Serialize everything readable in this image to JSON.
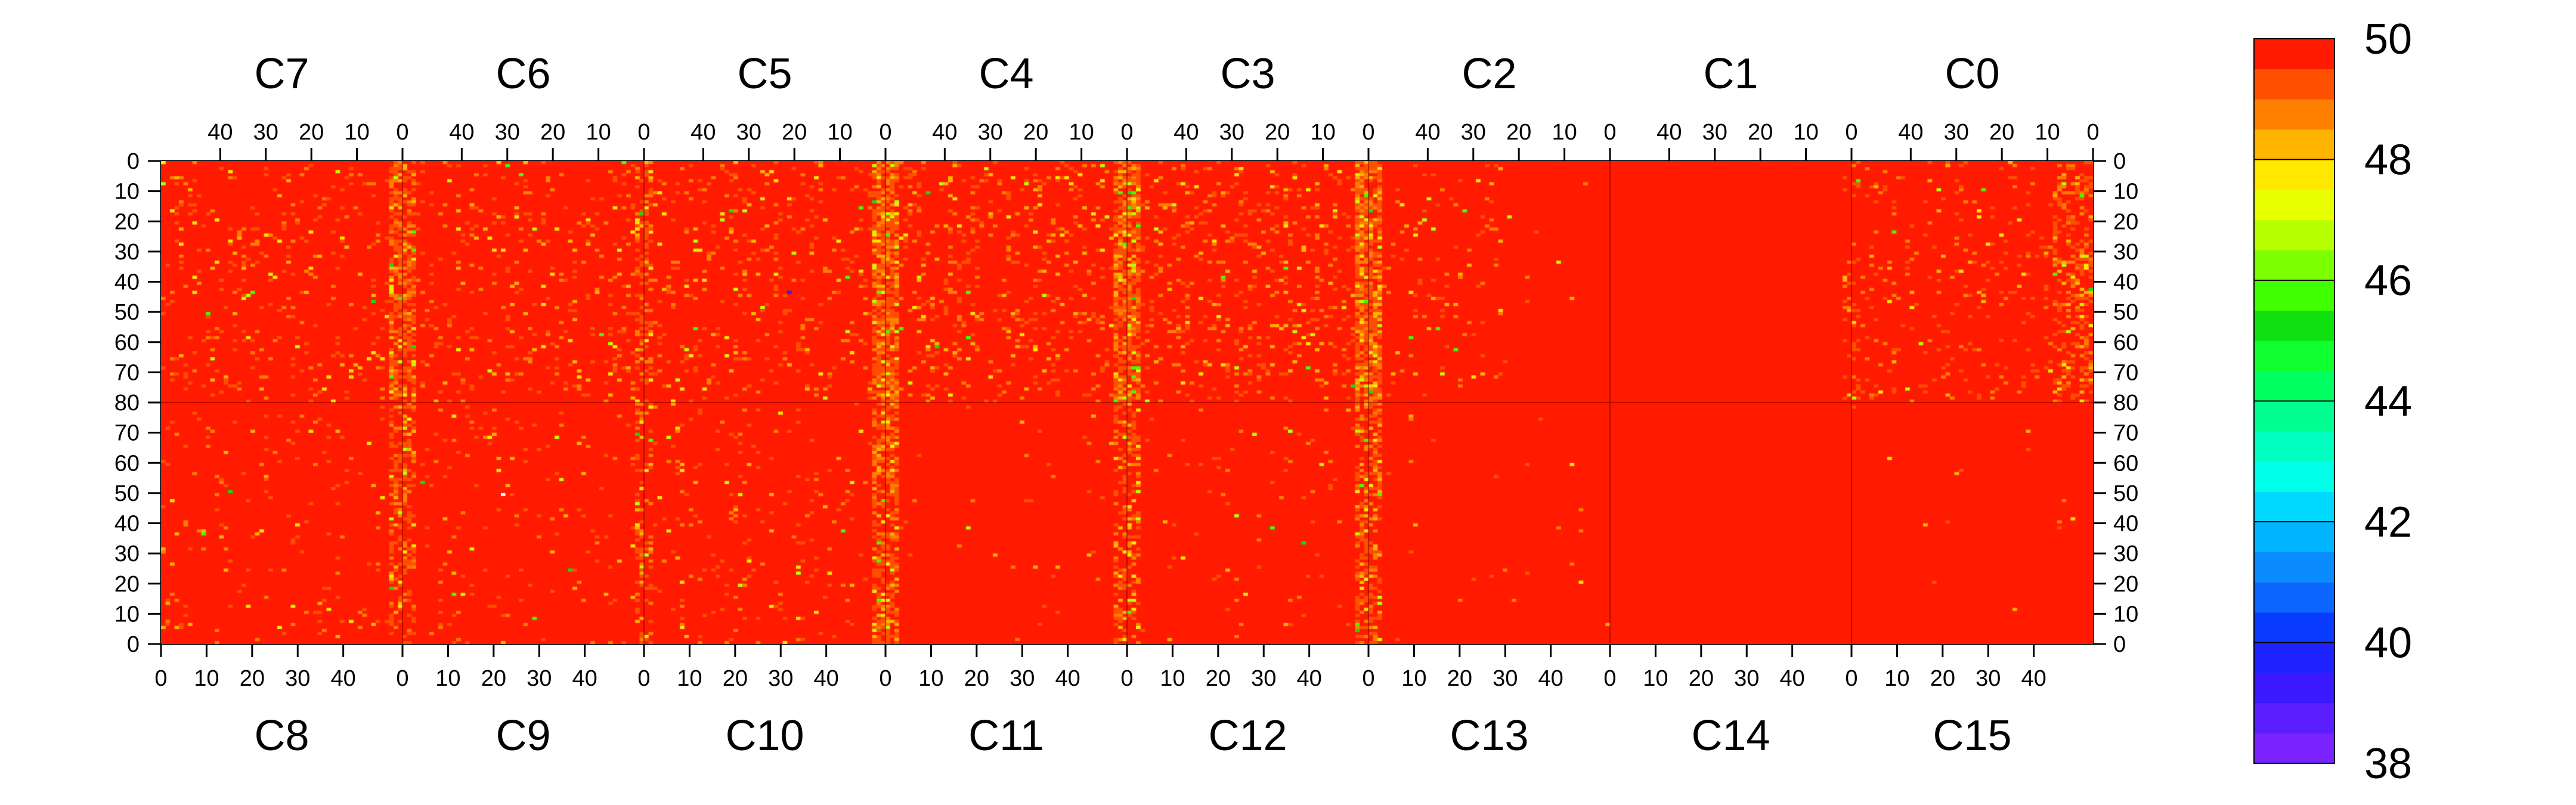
{
  "chart_data": {
    "type": "heatmap",
    "title": "",
    "xlabel": "",
    "ylabel": "",
    "top_chips": [
      "C7",
      "C6",
      "C5",
      "C4",
      "C3",
      "C2",
      "C1",
      "C0"
    ],
    "bottom_chips": [
      "C8",
      "C9",
      "C10",
      "C11",
      "C12",
      "C13",
      "C14",
      "C15"
    ],
    "chip_x_range": [
      0,
      53
    ],
    "chip_y_range": [
      0,
      80
    ],
    "top_x_ticks": [
      40,
      30,
      20,
      10,
      0
    ],
    "bottom_x_ticks": [
      0,
      10,
      20,
      30,
      40
    ],
    "top_y_ticks": [
      0,
      10,
      20,
      30,
      40,
      50,
      60,
      70,
      80
    ],
    "bottom_y_ticks": [
      70,
      60,
      50,
      40,
      30,
      20,
      10,
      0
    ],
    "colorbar": {
      "min": 38,
      "max": 50,
      "ticks": [
        50,
        48,
        46,
        44,
        42,
        40,
        38
      ],
      "levels": 24
    },
    "cell_values": "approximately 50 (red) for nearly all pixels; lower values (45-48, orange/yellow/green) concentrated in the columns adjacent to chip boundaries, especially near the C7/C6, C5/C4, C4/C3 and C3/C2 edges; chips C13 and C14 are almost uniformly 50",
    "grid": false,
    "legend": "right"
  },
  "colors": {
    "background": "#ffffff",
    "colorbar_stops": [
      "#7a22ff",
      "#5a1eff",
      "#3a19ff",
      "#1e22ff",
      "#0a3cff",
      "#0a66ff",
      "#0a8cff",
      "#00b4ff",
      "#00d8ff",
      "#00ffe8",
      "#00ffc0",
      "#00ff90",
      "#00ff60",
      "#10ff30",
      "#10e010",
      "#40ff00",
      "#7cff00",
      "#b8ff00",
      "#e8ff00",
      "#ffe800",
      "#ffb400",
      "#ff8000",
      "#ff5000",
      "#ff1a00"
    ]
  }
}
